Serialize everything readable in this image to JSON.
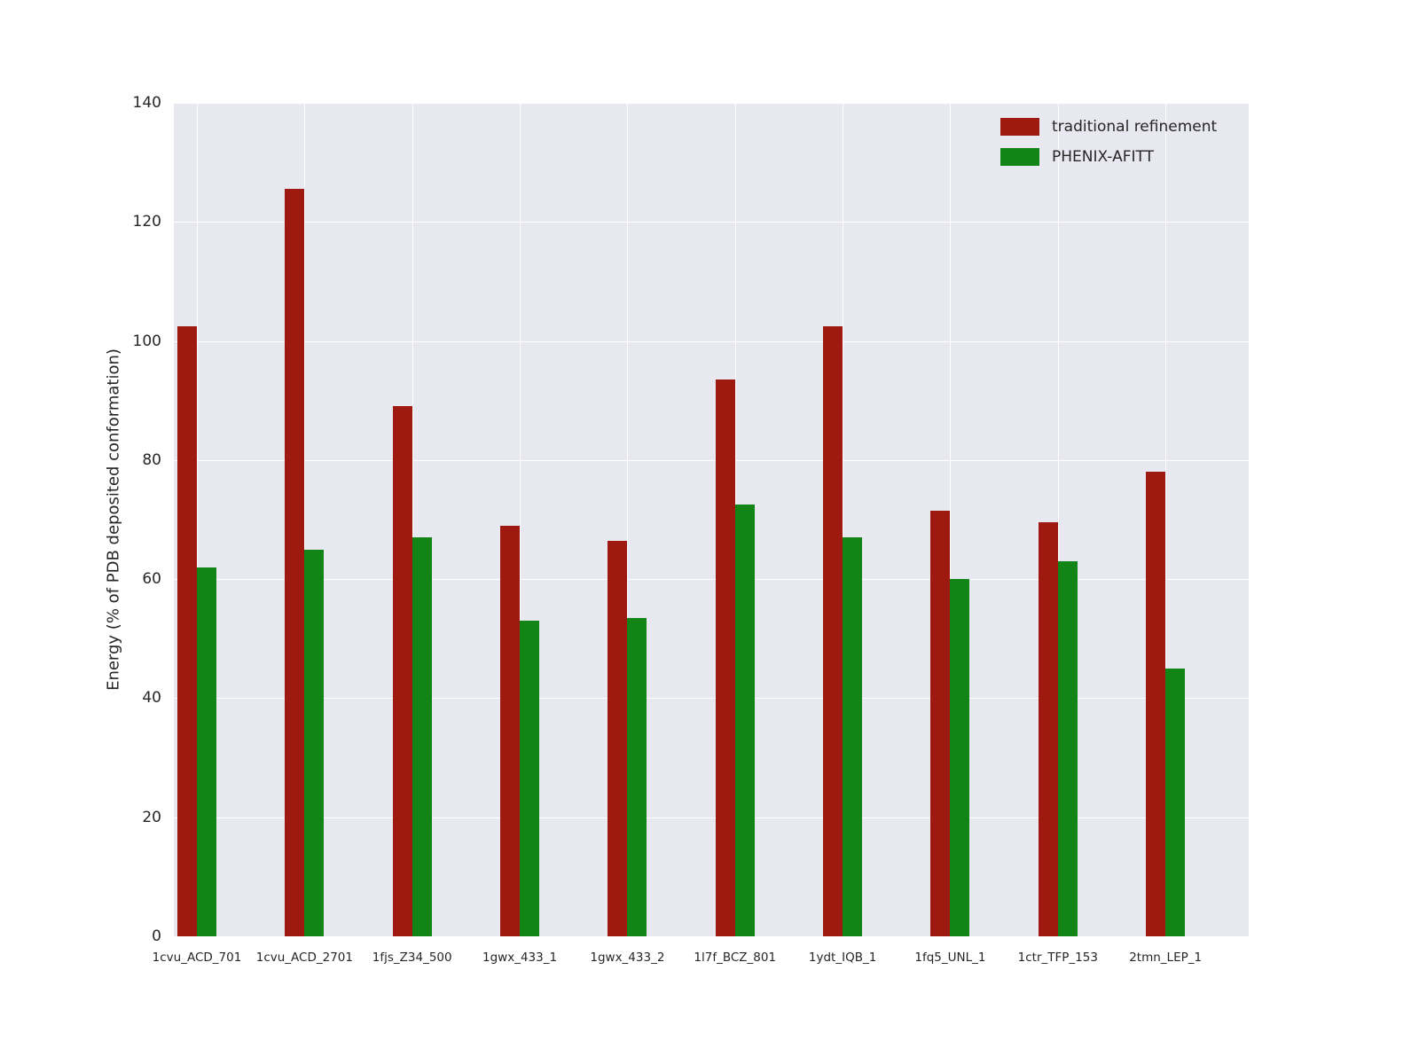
{
  "chart_data": {
    "type": "bar",
    "title": "",
    "xlabel": "",
    "ylabel": "Energy (% of PDB deposited conformation)",
    "ylim": [
      0,
      140
    ],
    "yticks": [
      0,
      20,
      40,
      60,
      80,
      100,
      120,
      140
    ],
    "grid": true,
    "legend_position": "upper right",
    "plot_background": "#e8e8f0",
    "gridline_color": "#ffffff",
    "categories": [
      "1cvu_ACD_701",
      "1cvu_ACD_2701",
      "1fjs_Z34_500",
      "1gwx_433_1",
      "1gwx_433_2",
      "1l7f_BCZ_801",
      "1ydt_IQB_1",
      "1fq5_UNL_1",
      "1ctr_TFP_153",
      "2tmn_LEP_1"
    ],
    "series": [
      {
        "name": "traditional refinement",
        "color": "#9e1a10",
        "values": [
          102.5,
          125.5,
          89,
          69,
          66.5,
          93.5,
          102.5,
          71.5,
          69.5,
          78
        ]
      },
      {
        "name": "PHENIX-AFITT",
        "color": "#118617",
        "values": [
          62,
          65,
          67,
          53,
          53.5,
          72.5,
          67,
          60,
          63,
          45
        ]
      }
    ]
  }
}
